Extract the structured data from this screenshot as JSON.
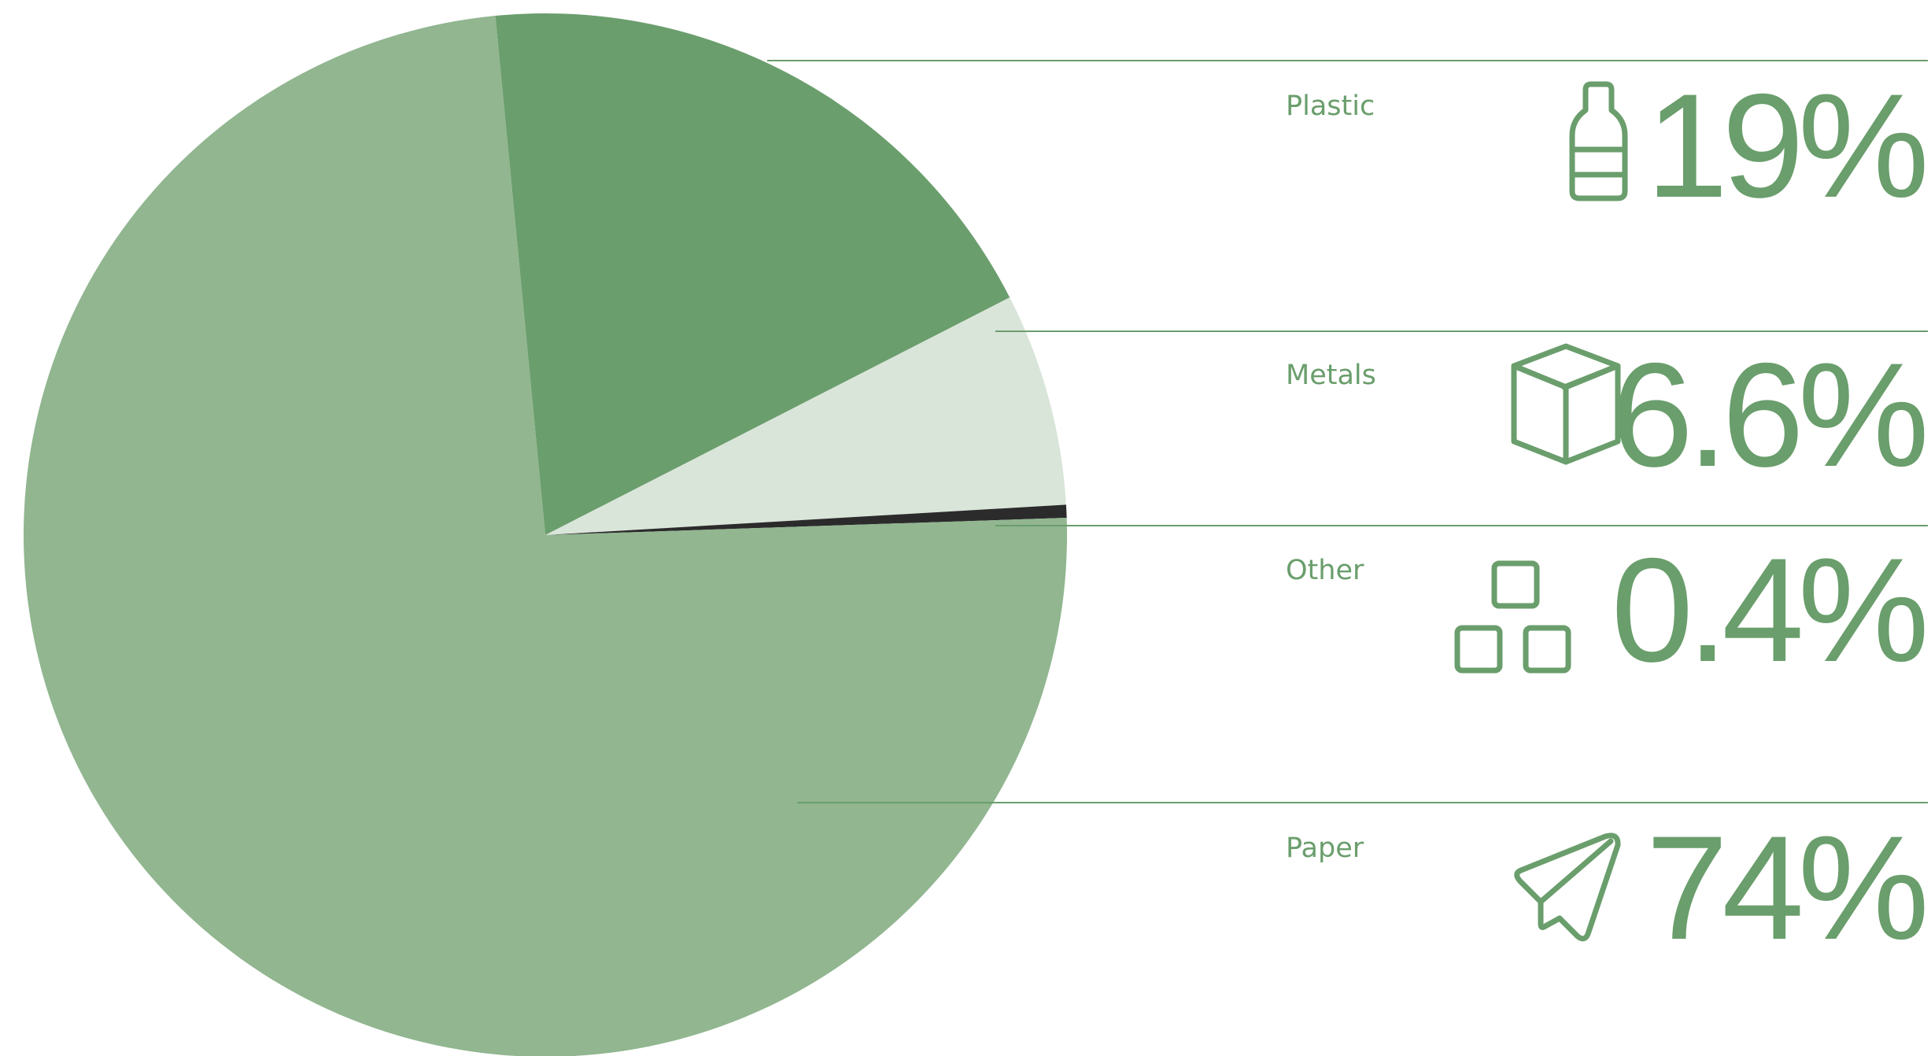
{
  "chart_data": {
    "type": "pie",
    "title": "",
    "categories": [
      "Plastic",
      "Metals",
      "Other",
      "Paper"
    ],
    "values": [
      19,
      6.6,
      0.4,
      74
    ],
    "value_labels": [
      "19%",
      "6.6%",
      "0.4%",
      "74%"
    ],
    "colors": [
      "#6b9e6d",
      "#dae5da",
      "#2b2b2b",
      "#91b690"
    ],
    "icons": [
      "bottle-icon",
      "box-icon",
      "blocks-icon",
      "paper-plane-icon"
    ],
    "legend": "right",
    "grid": false
  },
  "colors": {
    "accent": "#6a9e6c"
  }
}
